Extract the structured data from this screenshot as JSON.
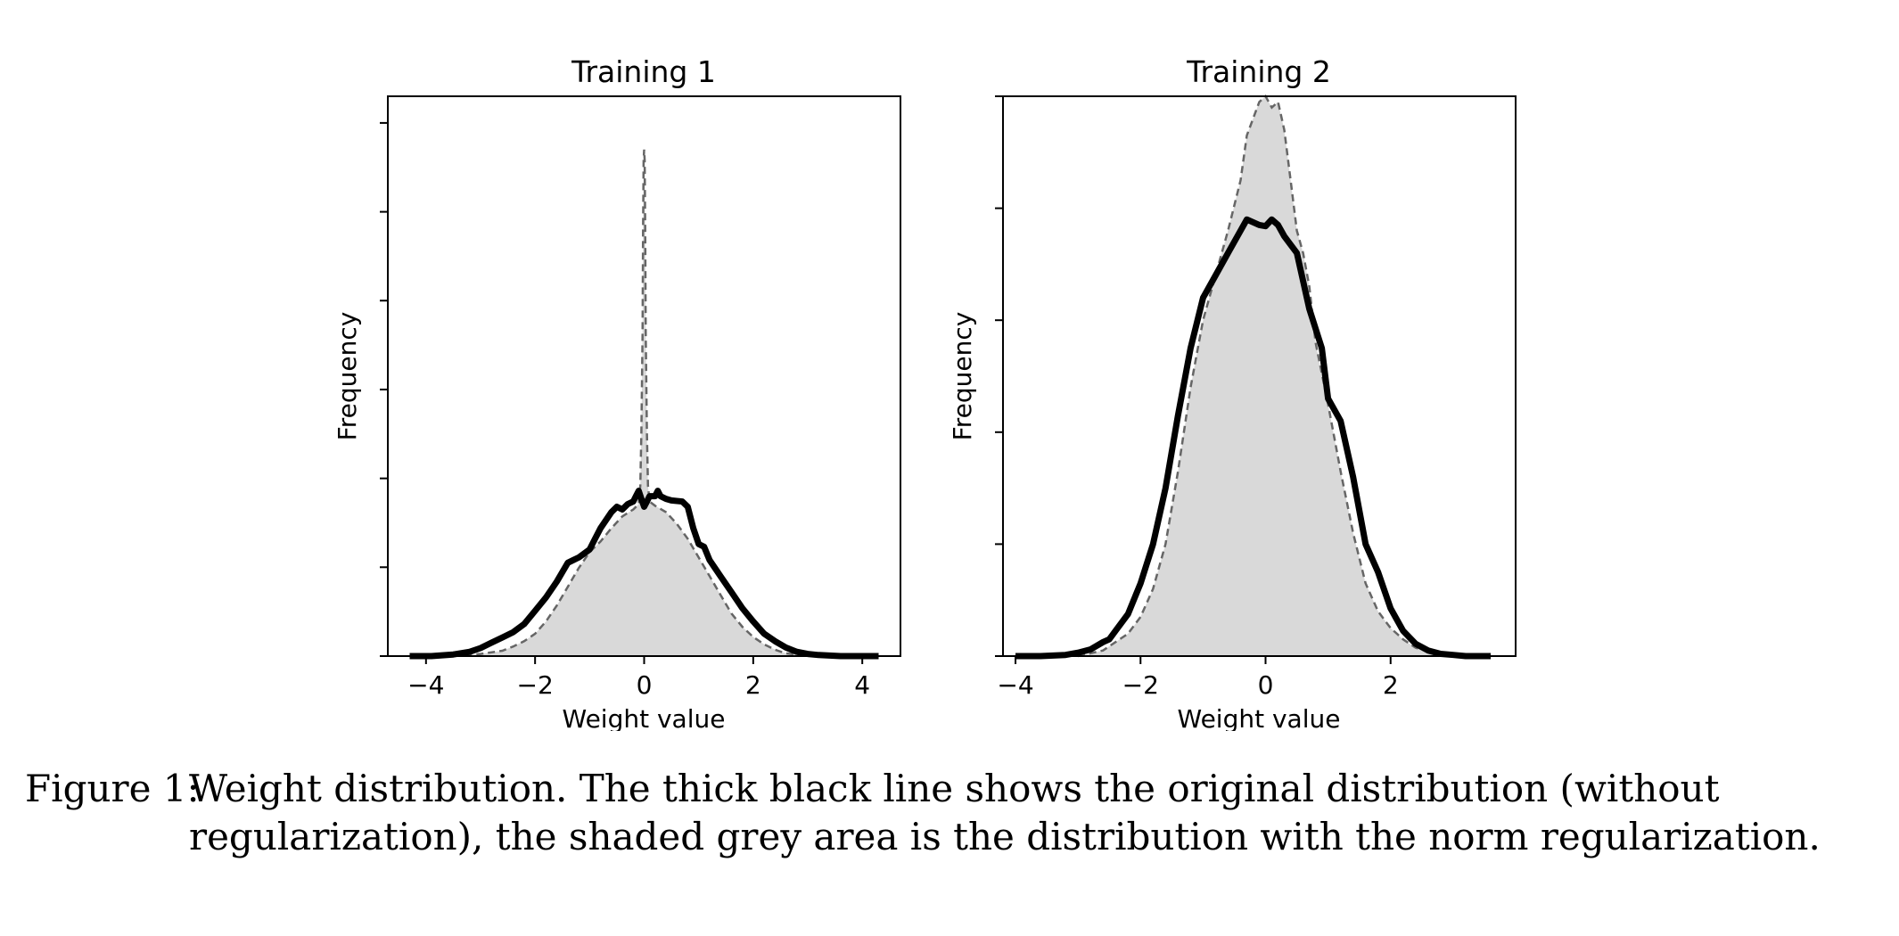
{
  "colors": {
    "original_line": "#000000",
    "regularized_fill": "#d9d9d9",
    "regularized_edge": "#666666"
  },
  "chart_data": [
    {
      "type": "area",
      "title": "Training 1",
      "xlabel": "Weight value",
      "ylabel": "Frequency",
      "xlim": [
        -4.7,
        4.7
      ],
      "ylim": [
        0,
        1.05
      ],
      "xticks": [
        -4,
        -2,
        0,
        2,
        4
      ],
      "xtick_labels": [
        "−4",
        "−2",
        "0",
        "2",
        "4"
      ],
      "yticks": [
        0,
        0.1667,
        0.3333,
        0.5,
        0.6667,
        0.8333,
        1.0
      ],
      "ytick_labels_shown": false,
      "series": [
        {
          "name": "original distribution (without regularization)",
          "style": "thick black line",
          "x": [
            -4.3,
            -3.9,
            -3.5,
            -3.2,
            -3.0,
            -2.8,
            -2.6,
            -2.4,
            -2.2,
            -2.0,
            -1.8,
            -1.6,
            -1.4,
            -1.3,
            -1.2,
            -1.0,
            -0.9,
            -0.8,
            -0.6,
            -0.5,
            -0.4,
            -0.3,
            -0.2,
            -0.15,
            -0.1,
            -0.05,
            0.0,
            0.05,
            0.1,
            0.2,
            0.25,
            0.3,
            0.4,
            0.5,
            0.7,
            0.8,
            0.9,
            1.0,
            1.1,
            1.2,
            1.4,
            1.6,
            1.8,
            2.0,
            2.2,
            2.4,
            2.6,
            2.8,
            3.0,
            3.2,
            3.6,
            4.0,
            4.3
          ],
          "y": [
            0.0,
            0.0,
            0.003,
            0.008,
            0.015,
            0.025,
            0.035,
            0.045,
            0.06,
            0.085,
            0.11,
            0.14,
            0.175,
            0.18,
            0.185,
            0.2,
            0.22,
            0.24,
            0.27,
            0.28,
            0.275,
            0.285,
            0.29,
            0.3,
            0.31,
            0.295,
            0.28,
            0.29,
            0.3,
            0.3,
            0.31,
            0.3,
            0.295,
            0.292,
            0.29,
            0.28,
            0.24,
            0.21,
            0.205,
            0.18,
            0.15,
            0.12,
            0.09,
            0.065,
            0.042,
            0.028,
            0.016,
            0.008,
            0.004,
            0.002,
            0.0,
            0.0,
            0.0
          ]
        },
        {
          "name": "distribution with the norm regularization",
          "style": "shaded grey area",
          "x": [
            -3.5,
            -3.0,
            -2.6,
            -2.4,
            -2.2,
            -2.0,
            -1.8,
            -1.6,
            -1.4,
            -1.2,
            -1.0,
            -0.8,
            -0.6,
            -0.4,
            -0.2,
            -0.1,
            -0.07,
            -0.05,
            -0.03,
            -0.02,
            -0.01,
            0.0,
            0.01,
            0.02,
            0.03,
            0.05,
            0.07,
            0.1,
            0.2,
            0.4,
            0.6,
            0.8,
            1.0,
            1.2,
            1.4,
            1.6,
            1.8,
            2.0,
            2.2,
            2.4,
            2.6,
            3.0,
            3.5
          ],
          "y": [
            0.0,
            0.004,
            0.01,
            0.018,
            0.028,
            0.042,
            0.065,
            0.095,
            0.13,
            0.165,
            0.195,
            0.215,
            0.24,
            0.262,
            0.275,
            0.285,
            0.32,
            0.42,
            0.6,
            0.8,
            0.93,
            0.95,
            0.93,
            0.8,
            0.6,
            0.42,
            0.32,
            0.29,
            0.282,
            0.27,
            0.248,
            0.22,
            0.185,
            0.15,
            0.115,
            0.08,
            0.055,
            0.036,
            0.022,
            0.012,
            0.005,
            0.001,
            0.0
          ]
        }
      ]
    },
    {
      "type": "area",
      "title": "Training 2",
      "xlabel": "Weight value",
      "ylabel": "Frequency",
      "xlim": [
        -4.2,
        4.0
      ],
      "ylim": [
        0,
        1.0
      ],
      "xticks": [
        -4,
        -2,
        0,
        2
      ],
      "xtick_labels": [
        "−4",
        "−2",
        "0",
        "2"
      ],
      "yticks": [
        0,
        0.2,
        0.4,
        0.6,
        0.8,
        1.0
      ],
      "ytick_labels_shown": false,
      "series": [
        {
          "name": "original distribution (without regularization)",
          "style": "thick black line",
          "x": [
            -4.0,
            -3.6,
            -3.2,
            -3.0,
            -2.8,
            -2.6,
            -2.5,
            -2.4,
            -2.2,
            -2.0,
            -1.8,
            -1.6,
            -1.4,
            -1.2,
            -1.0,
            -0.8,
            -0.6,
            -0.4,
            -0.3,
            -0.2,
            -0.1,
            0.0,
            0.1,
            0.2,
            0.3,
            0.5,
            0.7,
            0.9,
            1.0,
            1.2,
            1.4,
            1.6,
            1.8,
            2.0,
            2.2,
            2.4,
            2.6,
            2.8,
            3.0,
            3.2,
            3.6
          ],
          "y": [
            0.0,
            0.0,
            0.002,
            0.006,
            0.012,
            0.025,
            0.03,
            0.045,
            0.075,
            0.13,
            0.2,
            0.3,
            0.43,
            0.55,
            0.64,
            0.68,
            0.72,
            0.76,
            0.78,
            0.775,
            0.77,
            0.768,
            0.78,
            0.77,
            0.75,
            0.72,
            0.62,
            0.55,
            0.46,
            0.42,
            0.32,
            0.2,
            0.15,
            0.085,
            0.045,
            0.022,
            0.01,
            0.004,
            0.002,
            0.0,
            0.0
          ]
        },
        {
          "name": "distribution with the norm regularization",
          "style": "shaded grey area",
          "x": [
            -3.0,
            -2.6,
            -2.2,
            -2.0,
            -1.8,
            -1.6,
            -1.4,
            -1.2,
            -1.0,
            -0.8,
            -0.6,
            -0.4,
            -0.3,
            -0.2,
            -0.1,
            0.0,
            0.1,
            0.2,
            0.3,
            0.4,
            0.5,
            0.6,
            0.7,
            0.8,
            1.0,
            1.2,
            1.4,
            1.6,
            1.8,
            2.0,
            2.2,
            2.4,
            2.8,
            3.0
          ],
          "y": [
            0.0,
            0.01,
            0.04,
            0.07,
            0.12,
            0.2,
            0.33,
            0.48,
            0.6,
            0.68,
            0.76,
            0.85,
            0.93,
            0.96,
            0.99,
            1.0,
            0.98,
            0.99,
            0.94,
            0.85,
            0.76,
            0.72,
            0.66,
            0.56,
            0.45,
            0.33,
            0.22,
            0.13,
            0.08,
            0.05,
            0.03,
            0.015,
            0.002,
            0.0
          ]
        }
      ]
    }
  ],
  "caption": {
    "label": "Figure 1:",
    "text": "Weight distribution. The thick black line shows the original distribution (without regularization), the shaded grey area is the distribution with the norm regularization."
  }
}
